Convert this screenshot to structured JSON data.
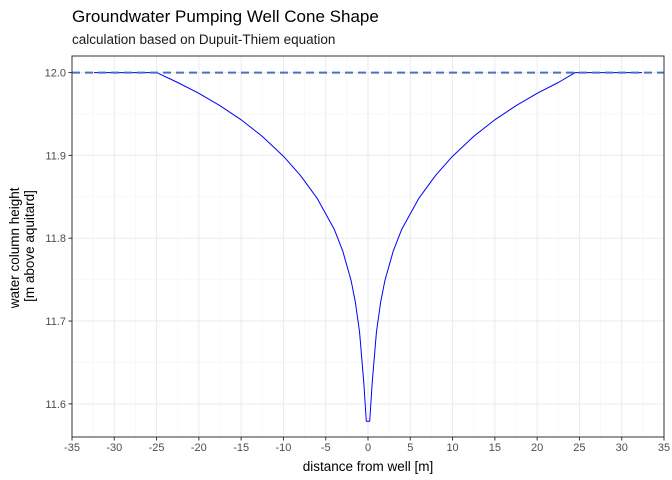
{
  "title": "Groundwater Pumping Well Cone Shape",
  "subtitle": "calculation based on Dupuit-Thiem equation",
  "colors": {
    "curve": "#0000ff",
    "reference_line": "#4472c4",
    "panel_border": "#333333",
    "grid_major": "#ebebeb",
    "grid_minor": "#f5f5f5"
  },
  "chart_data": {
    "type": "line",
    "title": "Groundwater Pumping Well Cone Shape",
    "subtitle": "calculation based on Dupuit-Thiem equation",
    "xlabel": "distance from well [m]",
    "ylabel": [
      "water column height",
      "[m above aquitard]"
    ],
    "xlim": [
      -35,
      35
    ],
    "ylim": [
      11.56,
      12.02
    ],
    "xticks": [
      -35,
      -30,
      -25,
      -20,
      -15,
      -10,
      -5,
      0,
      5,
      10,
      15,
      20,
      25,
      30,
      35
    ],
    "xtick_labels": [
      "-35",
      "-30",
      "-25",
      "-20",
      "-15",
      "-10",
      "-5",
      "0",
      "5",
      "10",
      "15",
      "20",
      "25",
      "30",
      "35"
    ],
    "yticks": [
      11.6,
      11.7,
      11.8,
      11.9,
      12.0
    ],
    "ytick_labels": [
      "11.6",
      "11.7",
      "11.8",
      "11.9",
      "12.0"
    ],
    "grid": true,
    "series": [
      {
        "line": "solid",
        "x": [
          -32.4,
          -30,
          -27,
          -25,
          -22.5,
          -20,
          -17.5,
          -15,
          -12.5,
          -10,
          -8,
          -6,
          -4,
          -3,
          -2,
          -1.5,
          -1,
          -0.5,
          -0.2,
          -0.1,
          0.1,
          0.2,
          0.5,
          1,
          1.5,
          2,
          3,
          4,
          6,
          8,
          10,
          12.5,
          15,
          17.5,
          20,
          22.5,
          24.5,
          27,
          30,
          32.4
        ],
        "y": [
          12.0,
          12.0,
          12.0,
          12.0,
          11.988,
          11.975,
          11.96,
          11.943,
          11.923,
          11.899,
          11.876,
          11.848,
          11.811,
          11.785,
          11.749,
          11.723,
          11.687,
          11.626,
          11.579,
          11.579,
          11.579,
          11.579,
          11.626,
          11.687,
          11.723,
          11.749,
          11.785,
          11.811,
          11.848,
          11.876,
          11.899,
          11.923,
          11.943,
          11.96,
          11.975,
          11.988,
          12.0,
          12.0,
          12.0,
          12.0
        ]
      },
      {
        "line": "dashed",
        "x": [
          -35,
          35
        ],
        "y": [
          12.0,
          12.0
        ]
      }
    ]
  }
}
